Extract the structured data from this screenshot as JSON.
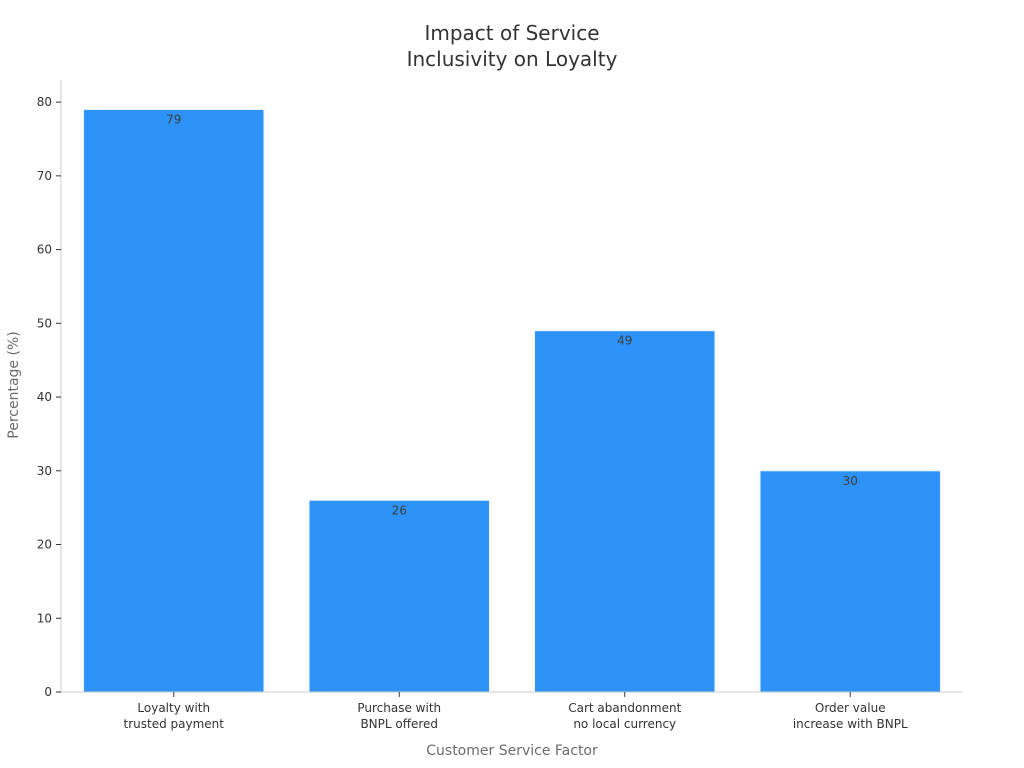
{
  "chart_data": {
    "type": "bar",
    "title": [
      "Impact of Service",
      "Inclusivity on Loyalty"
    ],
    "xlabel": "Customer Service Factor",
    "ylabel": "Percentage (%)",
    "categories": [
      [
        "Loyalty with",
        "trusted payment"
      ],
      [
        "Purchase with",
        "BNPL offered"
      ],
      [
        "Cart abandonment",
        "no local currency"
      ],
      [
        "Order value",
        "increase with BNPL"
      ]
    ],
    "values": [
      79,
      26,
      49,
      30
    ],
    "ylim": [
      0,
      83
    ],
    "yticks": [
      0,
      10,
      20,
      30,
      40,
      50,
      60,
      70,
      80
    ],
    "grid": false,
    "data_labels": true,
    "bar_color": "#2e93f8",
    "bar_edge_color": "#e6f1fc"
  }
}
